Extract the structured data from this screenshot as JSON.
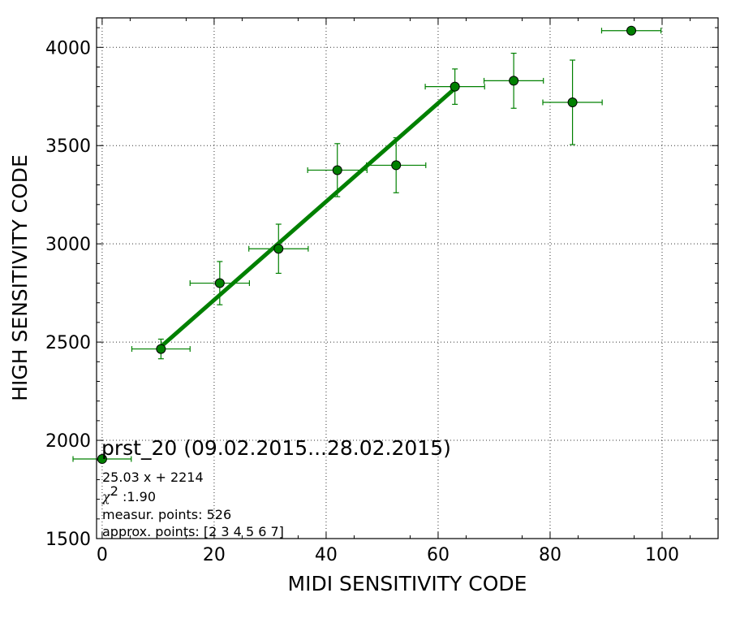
{
  "chart_data": {
    "type": "scatter",
    "xlabel": "MIDI SENSITIVITY CODE",
    "ylabel": "HIGH SENSITIVITY CODE",
    "xlim": [
      -1,
      110
    ],
    "ylim": [
      1500,
      4150
    ],
    "x_ticks": [
      0,
      20,
      40,
      60,
      80,
      100
    ],
    "y_ticks": [
      1500,
      2000,
      2500,
      3000,
      3500,
      4000
    ],
    "x_tick_labels": [
      "0",
      "20",
      "40",
      "60",
      "80",
      "100"
    ],
    "y_tick_labels": [
      "1500",
      "2000",
      "2500",
      "3000",
      "3500",
      "4000"
    ],
    "grid": true,
    "colors": {
      "marker": "#008000",
      "fit_line": "#008000",
      "errorbar": "#008000"
    },
    "points": [
      {
        "x": 0,
        "y": 1905,
        "xerr": 5.2,
        "yerr": 0
      },
      {
        "x": 10.5,
        "y": 2465,
        "xerr": 5.2,
        "yerr": 50
      },
      {
        "x": 21,
        "y": 2800,
        "xerr": 5.3,
        "yerr": 110
      },
      {
        "x": 31.5,
        "y": 2975,
        "xerr": 5.3,
        "yerr": 125
      },
      {
        "x": 42,
        "y": 3375,
        "xerr": 5.3,
        "yerr": 135
      },
      {
        "x": 52.5,
        "y": 3400,
        "xerr": 5.3,
        "yerr": 140
      },
      {
        "x": 63,
        "y": 3800,
        "xerr": 5.3,
        "yerr": 90
      },
      {
        "x": 73.5,
        "y": 3830,
        "xerr": 5.3,
        "yerr": 140
      },
      {
        "x": 84,
        "y": 3720,
        "xerr": 5.3,
        "yerr": 215
      },
      {
        "x": 94.5,
        "y": 4085,
        "xerr": 5.3,
        "yerr": 0
      }
    ],
    "fit": {
      "slope": 25.03,
      "intercept": 2214,
      "x_start": 10.5,
      "x_end": 63
    },
    "annotation": {
      "title": "prst_20 (09.02.2015...28.02.2015)",
      "equation": "25.03 x + 2214",
      "chi_symbol": "χ",
      "chi_exponent": "2",
      "chi_value": " :1.90",
      "measur_points": "measur. points: 526",
      "approx_points": "approx. points: [2 3 4 5 6 7]"
    }
  }
}
